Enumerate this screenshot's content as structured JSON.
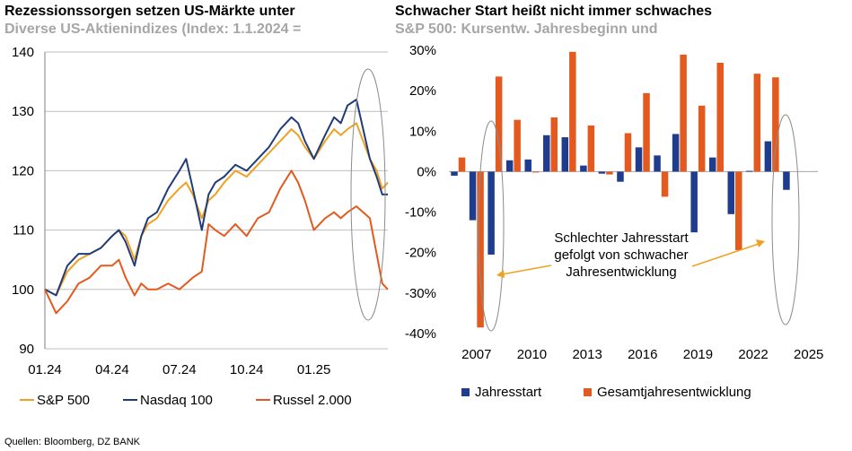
{
  "source": "Quellen: Bloomberg, DZ BANK",
  "colors": {
    "orange": "#f0a022",
    "navy": "#1f3b7a",
    "red": "#e45a1e",
    "blue": "#1f3d8f",
    "grid": "#bfbfbf",
    "ellipse": "#8c8c8c"
  },
  "chart_data": [
    {
      "type": "line",
      "title": "Rezessionssorgen setzen US-Märkte unter",
      "subtitle": "Diverse US-Aktienindizes (Index: 1.1.2024 =",
      "ylim": [
        90,
        140
      ],
      "yticks": [
        90,
        100,
        110,
        120,
        130,
        140
      ],
      "xlim": [
        0,
        15.3
      ],
      "xticks": [
        0,
        3,
        6,
        9,
        12
      ],
      "xtick_labels": [
        "01.24",
        "04.24",
        "07.24",
        "10.24",
        "01.25"
      ],
      "grid": "horizontal",
      "legend_position": "bottom",
      "series": [
        {
          "name": "S&P 500",
          "color": "#f0a022",
          "x": [
            0,
            0.5,
            1.0,
            1.5,
            2.0,
            2.5,
            3.0,
            3.3,
            3.6,
            4.0,
            4.3,
            4.6,
            5.0,
            5.5,
            6.0,
            6.3,
            6.6,
            7.0,
            7.3,
            7.6,
            8.0,
            8.5,
            9.0,
            9.5,
            10.0,
            10.5,
            11.0,
            11.3,
            11.6,
            12.0,
            12.5,
            12.9,
            13.2,
            13.5,
            13.9,
            14.2,
            14.5,
            14.8,
            15.05,
            15.3
          ],
          "values": [
            100,
            99,
            103,
            105,
            106,
            107,
            109,
            110,
            109,
            105,
            109,
            111,
            112,
            115,
            117,
            118,
            116,
            112,
            115,
            116,
            118,
            120,
            119,
            121,
            123,
            125,
            127,
            126,
            124,
            122,
            125,
            127,
            126,
            127,
            128,
            125,
            122,
            120,
            117,
            118
          ]
        },
        {
          "name": "Nasdaq 100",
          "color": "#1f3b7a",
          "x": [
            0,
            0.5,
            1.0,
            1.5,
            2.0,
            2.5,
            3.0,
            3.3,
            3.6,
            4.0,
            4.3,
            4.6,
            5.0,
            5.5,
            6.0,
            6.3,
            6.6,
            7.0,
            7.3,
            7.6,
            8.0,
            8.5,
            9.0,
            9.5,
            10.0,
            10.5,
            11.0,
            11.3,
            11.6,
            12.0,
            12.5,
            12.9,
            13.2,
            13.5,
            13.9,
            14.2,
            14.5,
            14.8,
            15.05,
            15.3
          ],
          "values": [
            100,
            99,
            104,
            106,
            106,
            107,
            109,
            110,
            108,
            104,
            109,
            112,
            113,
            117,
            120,
            122,
            117,
            110,
            116,
            118,
            119,
            121,
            120,
            122,
            124,
            127,
            129,
            128,
            125,
            122,
            126,
            129,
            128,
            131,
            132,
            127,
            122,
            119,
            116,
            116
          ]
        },
        {
          "name": "Russel 2.000",
          "color": "#e45a1e",
          "x": [
            0,
            0.5,
            1.0,
            1.5,
            2.0,
            2.5,
            3.0,
            3.3,
            3.6,
            4.0,
            4.3,
            4.6,
            5.0,
            5.5,
            6.0,
            6.3,
            6.6,
            7.0,
            7.3,
            7.6,
            8.0,
            8.5,
            9.0,
            9.5,
            10.0,
            10.5,
            11.0,
            11.3,
            11.6,
            12.0,
            12.5,
            12.9,
            13.2,
            13.5,
            13.9,
            14.2,
            14.5,
            14.8,
            15.05,
            15.3
          ],
          "values": [
            100,
            96,
            98,
            101,
            102,
            104,
            104,
            105,
            102,
            99,
            101,
            100,
            100,
            101,
            100,
            101,
            102,
            103,
            111,
            110,
            109,
            111,
            109,
            112,
            113,
            117,
            120,
            118,
            115,
            110,
            112,
            113,
            112,
            113,
            114,
            113,
            112,
            106,
            101,
            100
          ]
        }
      ],
      "annotation": "ellipse-highlight-latest"
    },
    {
      "type": "bar",
      "title": "Schwacher Start heißt nicht immer schwaches",
      "subtitle": "S&P 500: Kursentw. Jahresbeginn und",
      "ylim": [
        -40,
        30
      ],
      "yticks": [
        -40,
        -30,
        -20,
        -10,
        0,
        10,
        20,
        30
      ],
      "ytick_labels": [
        "-40%",
        "-30%",
        "-20%",
        "-10%",
        "0%",
        "10%",
        "20%",
        "30%"
      ],
      "categories": [
        "2006",
        "2007",
        "2008",
        "2009",
        "2010",
        "2011",
        "2012",
        "2013",
        "2014",
        "2015",
        "2016",
        "2017",
        "2018",
        "2019",
        "2020",
        "2021",
        "2022",
        "2023",
        "2024",
        "2025"
      ],
      "xtick_labels": [
        "2007",
        "2010",
        "2013",
        "2016",
        "2019",
        "2022",
        "2025"
      ],
      "xtick_label_positions": [
        1,
        4,
        7,
        10,
        13,
        16,
        19
      ],
      "legend_position": "bottom",
      "series": [
        {
          "name": "Jahresstart",
          "color": "#1f3d8f",
          "values": [
            -1.0,
            -12.0,
            -20.5,
            2.8,
            3.0,
            9.0,
            8.5,
            1.5,
            -0.5,
            -2.5,
            6.0,
            4.0,
            9.3,
            -15.0,
            3.5,
            -10.5,
            0.2,
            7.5,
            -4.5,
            null
          ]
        },
        {
          "name": "Gesamtjahresentwicklung",
          "color": "#e45a1e",
          "values": [
            3.5,
            -38.5,
            23.5,
            12.8,
            0.0,
            13.4,
            29.6,
            11.4,
            -0.7,
            9.5,
            19.4,
            -6.2,
            28.9,
            16.3,
            26.9,
            -19.4,
            24.2,
            23.3,
            null,
            null
          ]
        }
      ],
      "annotation": "Schlechter Jahresstart\ngefolgt von schwacher\nJahresentwicklung"
    }
  ]
}
